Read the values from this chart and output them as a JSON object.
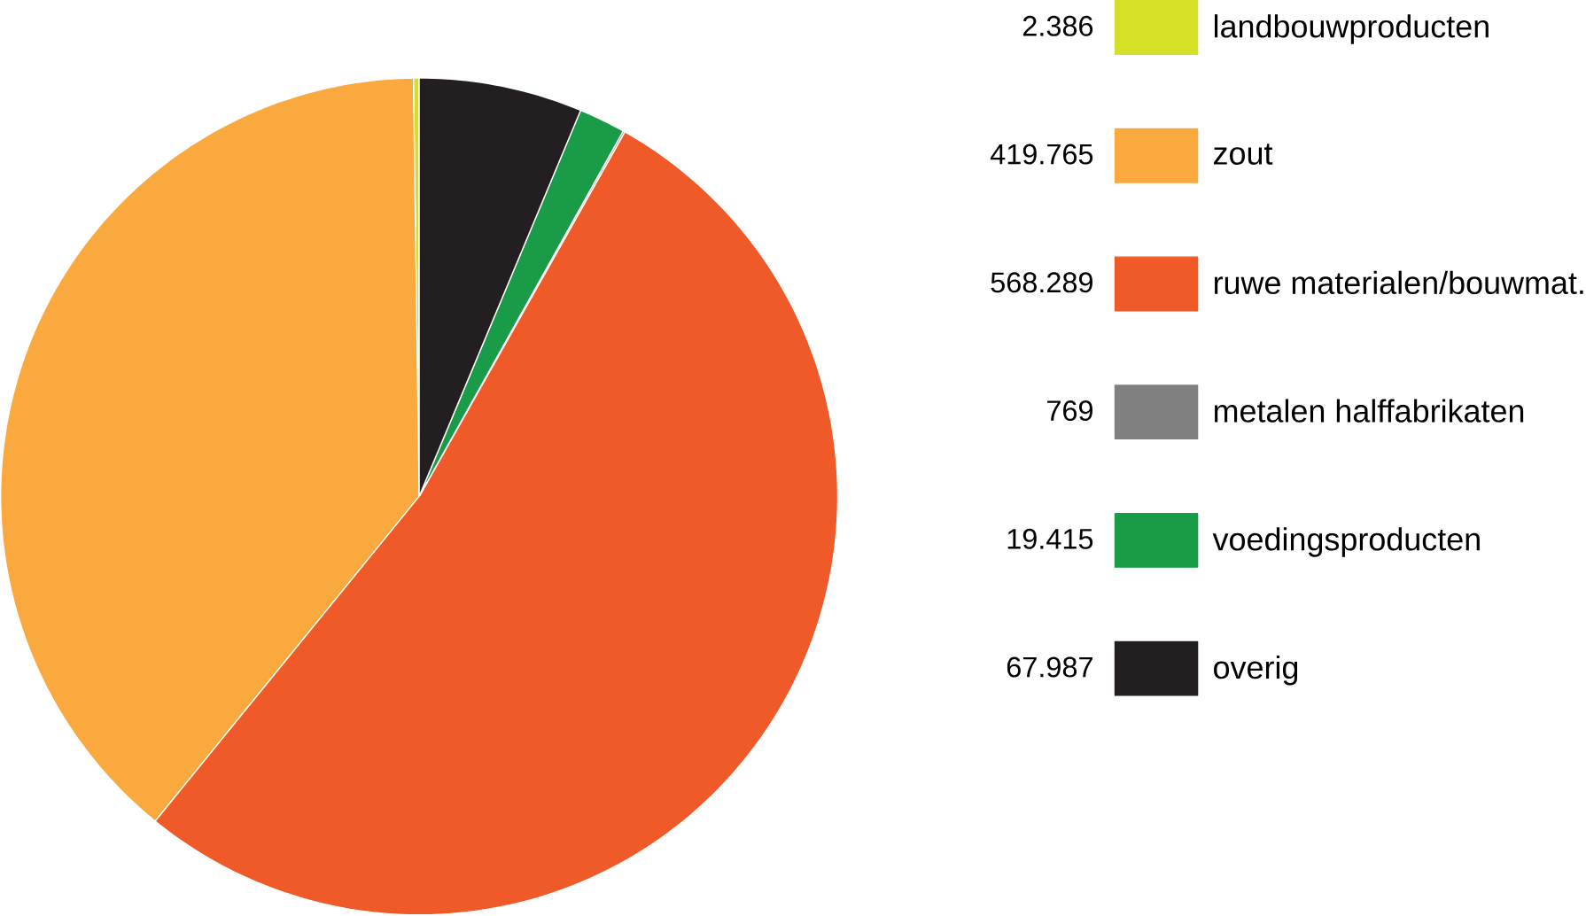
{
  "chart_data": {
    "type": "pie",
    "categories": [
      "landbouwproducten",
      "zout",
      "ruwe materialen/bouwmat.",
      "metalen halffabrikaten",
      "voedingsproducten",
      "overig"
    ],
    "values": [
      2386,
      419765,
      568289,
      769,
      19415,
      67987
    ],
    "value_labels": [
      "2.386",
      "419.765",
      "568.289",
      "769",
      "19.415",
      "67.987"
    ],
    "colors": [
      "#d4df26",
      "#f9a93e",
      "#f05a28",
      "#808080",
      "#1a9b48",
      "#231f20"
    ],
    "legend": "right"
  }
}
